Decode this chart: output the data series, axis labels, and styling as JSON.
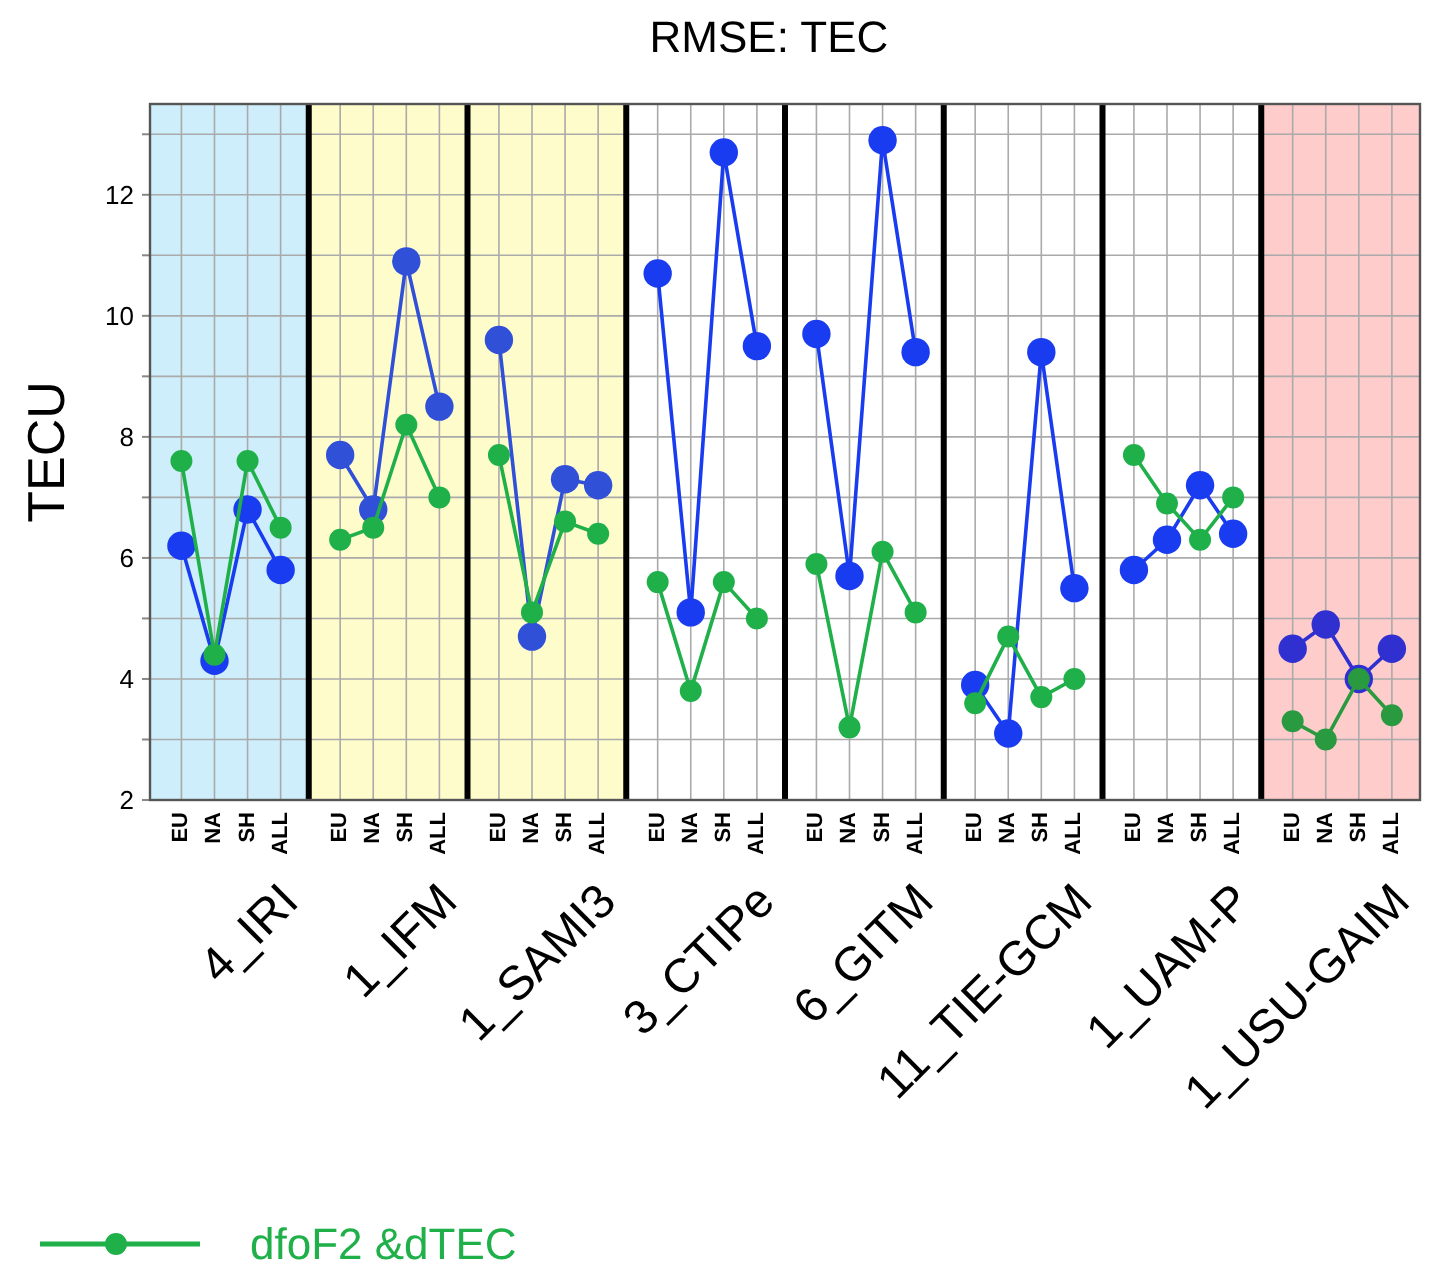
{
  "chart_data": [
    {
      "type": "line",
      "ylabel": "TECU",
      "xlabel": "4_IRI",
      "categories": [
        "EU",
        "NA",
        "SH",
        "ALL"
      ],
      "ylim": [
        2,
        13.5
      ],
      "yticks": [
        2,
        {
          "value": 3,
          "label": null
        },
        4,
        {
          "value": 5,
          "label": null
        },
        6,
        {
          "value": 7,
          "label": null
        },
        8,
        {
          "value": 9,
          "label": null
        },
        10,
        {
          "value": 11,
          "label": null
        },
        12,
        {
          "value": 13,
          "label": null
        }
      ],
      "grid": true,
      "marker": "circle",
      "legend": "bottom",
      "bands": [
        {
          "axis": "y",
          "from": 2,
          "to": 13.5,
          "color": "#cdeefa"
        }
      ],
      "series": [
        {
          "color": "#1a3cf0",
          "values": [
            6.2,
            4.3,
            6.8,
            5.8
          ]
        },
        {
          "name": "dfoF2 &dTEC",
          "color": "#1fb04a",
          "values": [
            7.6,
            4.4,
            7.6,
            6.5
          ]
        }
      ]
    },
    {
      "type": "line",
      "xlabel": "1_IFM",
      "categories": [
        "EU",
        "NA",
        "SH",
        "ALL"
      ],
      "ylim": [
        2,
        13.5
      ],
      "yticks": [
        2,
        {
          "value": 3,
          "label": null
        },
        4,
        {
          "value": 5,
          "label": null
        },
        6,
        {
          "value": 7,
          "label": null
        },
        8,
        {
          "value": 9,
          "label": null
        },
        10,
        {
          "value": 11,
          "label": null
        },
        12,
        {
          "value": 13,
          "label": null
        }
      ],
      "grid": true,
      "marker": "circle",
      "tick_labels": "x",
      "bands": [
        {
          "axis": "y",
          "from": 2,
          "to": 13.5,
          "color": "#fffccc"
        }
      ],
      "series": [
        {
          "color": "#3050d8",
          "values": [
            7.7,
            6.8,
            10.9,
            8.5
          ]
        },
        {
          "color": "#1fb04a",
          "values": [
            6.3,
            6.5,
            8.2,
            7.0
          ]
        }
      ]
    },
    {
      "type": "line",
      "xlabel": "1_SAMI3",
      "categories": [
        "EU",
        "NA",
        "SH",
        "ALL"
      ],
      "ylim": [
        2,
        13.5
      ],
      "yticks": [
        2,
        {
          "value": 3,
          "label": null
        },
        4,
        {
          "value": 5,
          "label": null
        },
        6,
        {
          "value": 7,
          "label": null
        },
        8,
        {
          "value": 9,
          "label": null
        },
        10,
        {
          "value": 11,
          "label": null
        },
        12,
        {
          "value": 13,
          "label": null
        }
      ],
      "grid": true,
      "marker": "circle",
      "tick_labels": "x",
      "bands": [
        {
          "axis": "y",
          "from": 2,
          "to": 13.5,
          "color": "#fffccc"
        }
      ],
      "series": [
        {
          "color": "#3050d8",
          "values": [
            9.6,
            4.7,
            7.3,
            7.2
          ]
        },
        {
          "color": "#1fb04a",
          "values": [
            7.7,
            5.1,
            6.6,
            6.4
          ]
        }
      ]
    },
    {
      "type": "line",
      "title": "RMSE: TEC",
      "xlabel": "3_CTIPe",
      "categories": [
        "EU",
        "NA",
        "SH",
        "ALL"
      ],
      "ylim": [
        2,
        13.5
      ],
      "yticks": [
        2,
        {
          "value": 3,
          "label": null
        },
        4,
        {
          "value": 5,
          "label": null
        },
        6,
        {
          "value": 7,
          "label": null
        },
        8,
        {
          "value": 9,
          "label": null
        },
        10,
        {
          "value": 11,
          "label": null
        },
        12,
        {
          "value": 13,
          "label": null
        }
      ],
      "grid": true,
      "marker": "circle",
      "tick_labels": "x",
      "series": [
        {
          "color": "#1a3cf0",
          "values": [
            10.7,
            5.1,
            12.7,
            9.5
          ]
        },
        {
          "color": "#1fb04a",
          "values": [
            5.6,
            3.8,
            5.6,
            5.0
          ]
        }
      ]
    },
    {
      "type": "line",
      "xlabel": "6_GITM",
      "categories": [
        "EU",
        "NA",
        "SH",
        "ALL"
      ],
      "ylim": [
        2,
        13.5
      ],
      "yticks": [
        2,
        {
          "value": 3,
          "label": null
        },
        4,
        {
          "value": 5,
          "label": null
        },
        6,
        {
          "value": 7,
          "label": null
        },
        8,
        {
          "value": 9,
          "label": null
        },
        10,
        {
          "value": 11,
          "label": null
        },
        12,
        {
          "value": 13,
          "label": null
        }
      ],
      "grid": true,
      "marker": "circle",
      "tick_labels": "x",
      "series": [
        {
          "color": "#1a3cf0",
          "values": [
            9.7,
            5.7,
            12.9,
            9.4
          ]
        },
        {
          "color": "#1fb04a",
          "values": [
            5.9,
            3.2,
            6.1,
            5.1
          ]
        }
      ]
    },
    {
      "type": "line",
      "xlabel": "11_TIE-GCM",
      "categories": [
        "EU",
        "NA",
        "SH",
        "ALL"
      ],
      "ylim": [
        2,
        13.5
      ],
      "yticks": [
        2,
        {
          "value": 3,
          "label": null
        },
        4,
        {
          "value": 5,
          "label": null
        },
        6,
        {
          "value": 7,
          "label": null
        },
        8,
        {
          "value": 9,
          "label": null
        },
        10,
        {
          "value": 11,
          "label": null
        },
        12,
        {
          "value": 13,
          "label": null
        }
      ],
      "grid": true,
      "marker": "circle",
      "tick_labels": "x",
      "series": [
        {
          "color": "#1a3cf0",
          "values": [
            3.9,
            3.1,
            9.4,
            5.5
          ]
        },
        {
          "color": "#1fb04a",
          "values": [
            3.6,
            4.7,
            3.7,
            4.0
          ]
        }
      ]
    },
    {
      "type": "line",
      "xlabel": "1_UAM-P",
      "categories": [
        "EU",
        "NA",
        "SH",
        "ALL"
      ],
      "ylim": [
        2,
        13.5
      ],
      "yticks": [
        2,
        {
          "value": 3,
          "label": null
        },
        4,
        {
          "value": 5,
          "label": null
        },
        6,
        {
          "value": 7,
          "label": null
        },
        8,
        {
          "value": 9,
          "label": null
        },
        10,
        {
          "value": 11,
          "label": null
        },
        12,
        {
          "value": 13,
          "label": null
        }
      ],
      "grid": true,
      "marker": "circle",
      "tick_labels": "x",
      "series": [
        {
          "color": "#1a3cf0",
          "values": [
            5.8,
            6.3,
            7.2,
            6.4
          ]
        },
        {
          "color": "#1fb04a",
          "values": [
            7.7,
            6.9,
            6.3,
            7.0
          ]
        }
      ]
    },
    {
      "type": "line",
      "xlabel": "1_USU-GAIM",
      "categories": [
        "EU",
        "NA",
        "SH",
        "ALL"
      ],
      "ylim": [
        2,
        13.5
      ],
      "yticks": [
        2,
        {
          "value": 3,
          "label": null
        },
        4,
        {
          "value": 5,
          "label": null
        },
        6,
        {
          "value": 7,
          "label": null
        },
        8,
        {
          "value": 9,
          "label": null
        },
        10,
        {
          "value": 11,
          "label": null
        },
        12,
        {
          "value": 13,
          "label": null
        }
      ],
      "grid": true,
      "marker": "circle",
      "tick_labels": "x",
      "bands": [
        {
          "axis": "y",
          "from": 2,
          "to": 13.5,
          "color": "#ffcccc"
        }
      ],
      "series": [
        {
          "color": "#3030d0",
          "values": [
            4.5,
            4.9,
            4.0,
            4.5
          ]
        },
        {
          "color": "#2a9a40",
          "values": [
            3.3,
            3.0,
            4.0,
            3.4
          ]
        }
      ]
    }
  ]
}
